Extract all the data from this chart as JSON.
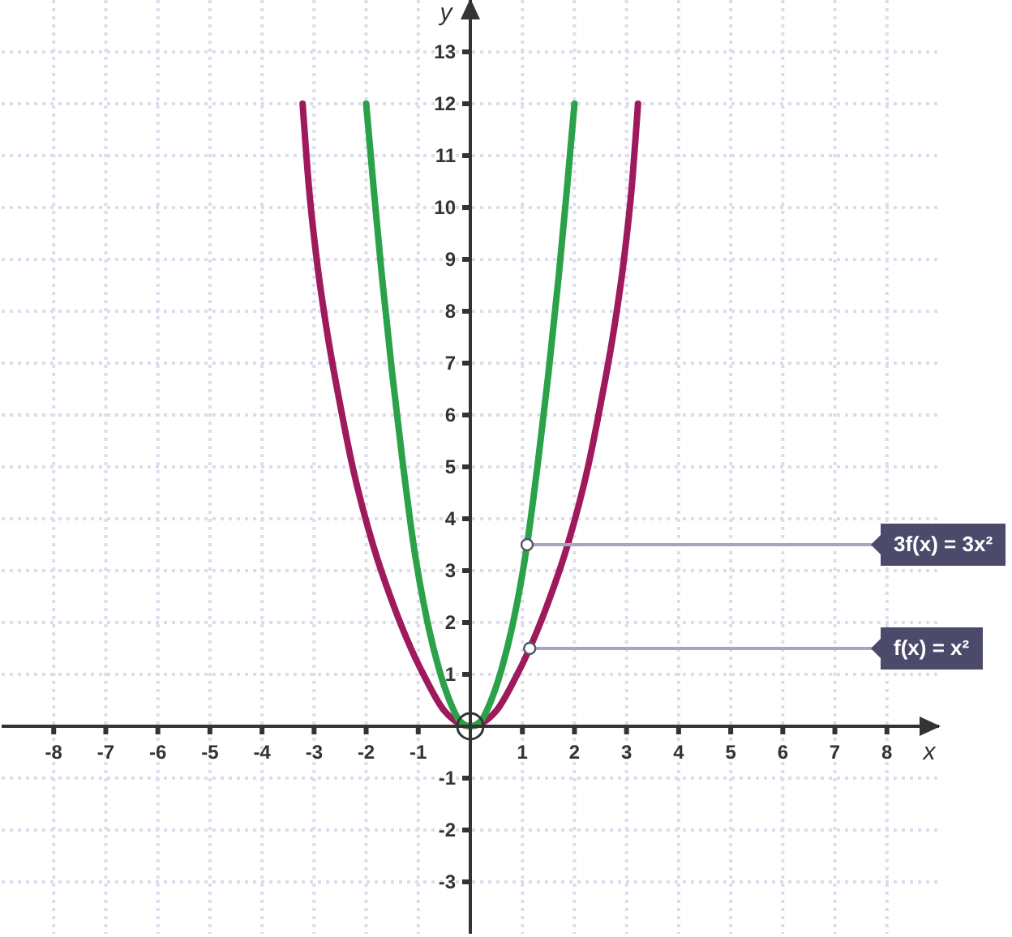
{
  "chart_data": {
    "type": "line",
    "xlabel": "x",
    "ylabel": "y",
    "xlim": [
      -9,
      9
    ],
    "ylim": [
      -4,
      14
    ],
    "xticks": [
      -8,
      -7,
      -6,
      -5,
      -4,
      -3,
      -2,
      -1,
      1,
      2,
      3,
      4,
      5,
      6,
      7,
      8
    ],
    "yticks": [
      -3,
      -2,
      -1,
      1,
      2,
      3,
      4,
      5,
      6,
      7,
      8,
      9,
      10,
      11,
      12,
      13
    ],
    "grid": true,
    "marker": "none",
    "line_style": "solid",
    "series": [
      {
        "color": "#9e1a5c",
        "x": [
          -3.22,
          -3.1,
          -2.95,
          -2.75,
          -2.5,
          -2.26,
          -1.87,
          -1.5,
          -1.14,
          -0.85,
          -0.5,
          0,
          0.5,
          0.85,
          1.14,
          1.5,
          1.87,
          2.26,
          2.5,
          2.75,
          2.95,
          3.1,
          3.22
        ],
        "values": [
          12,
          10.4,
          9,
          7.6,
          6.2,
          5,
          3.5,
          2.4,
          1.5,
          0.9,
          0.3,
          0,
          0.3,
          0.9,
          1.5,
          2.4,
          3.5,
          5,
          6.2,
          7.6,
          9,
          10.4,
          12
        ]
      },
      {
        "color": "#2ba14a",
        "x": [
          -2,
          -1.85,
          -1.7,
          -1.5,
          -1.3,
          -1.09,
          -0.8,
          -0.6,
          -0.4,
          -0.2,
          0,
          0.2,
          0.4,
          0.6,
          0.8,
          1.09,
          1.3,
          1.5,
          1.7,
          1.85,
          2
        ],
        "values": [
          12,
          10.3,
          8.7,
          6.8,
          5.1,
          3.5,
          1.9,
          1.1,
          0.5,
          0.1,
          0,
          0.1,
          0.5,
          1.1,
          1.9,
          3.5,
          5.1,
          6.8,
          8.7,
          10.3,
          12
        ]
      }
    ],
    "annotations": [
      {
        "text": "3f(x) = 3x²",
        "x": 1.09,
        "y": 3.5
      },
      {
        "text": "f(x) = x²",
        "x": 1.14,
        "y": 1.5
      }
    ]
  }
}
